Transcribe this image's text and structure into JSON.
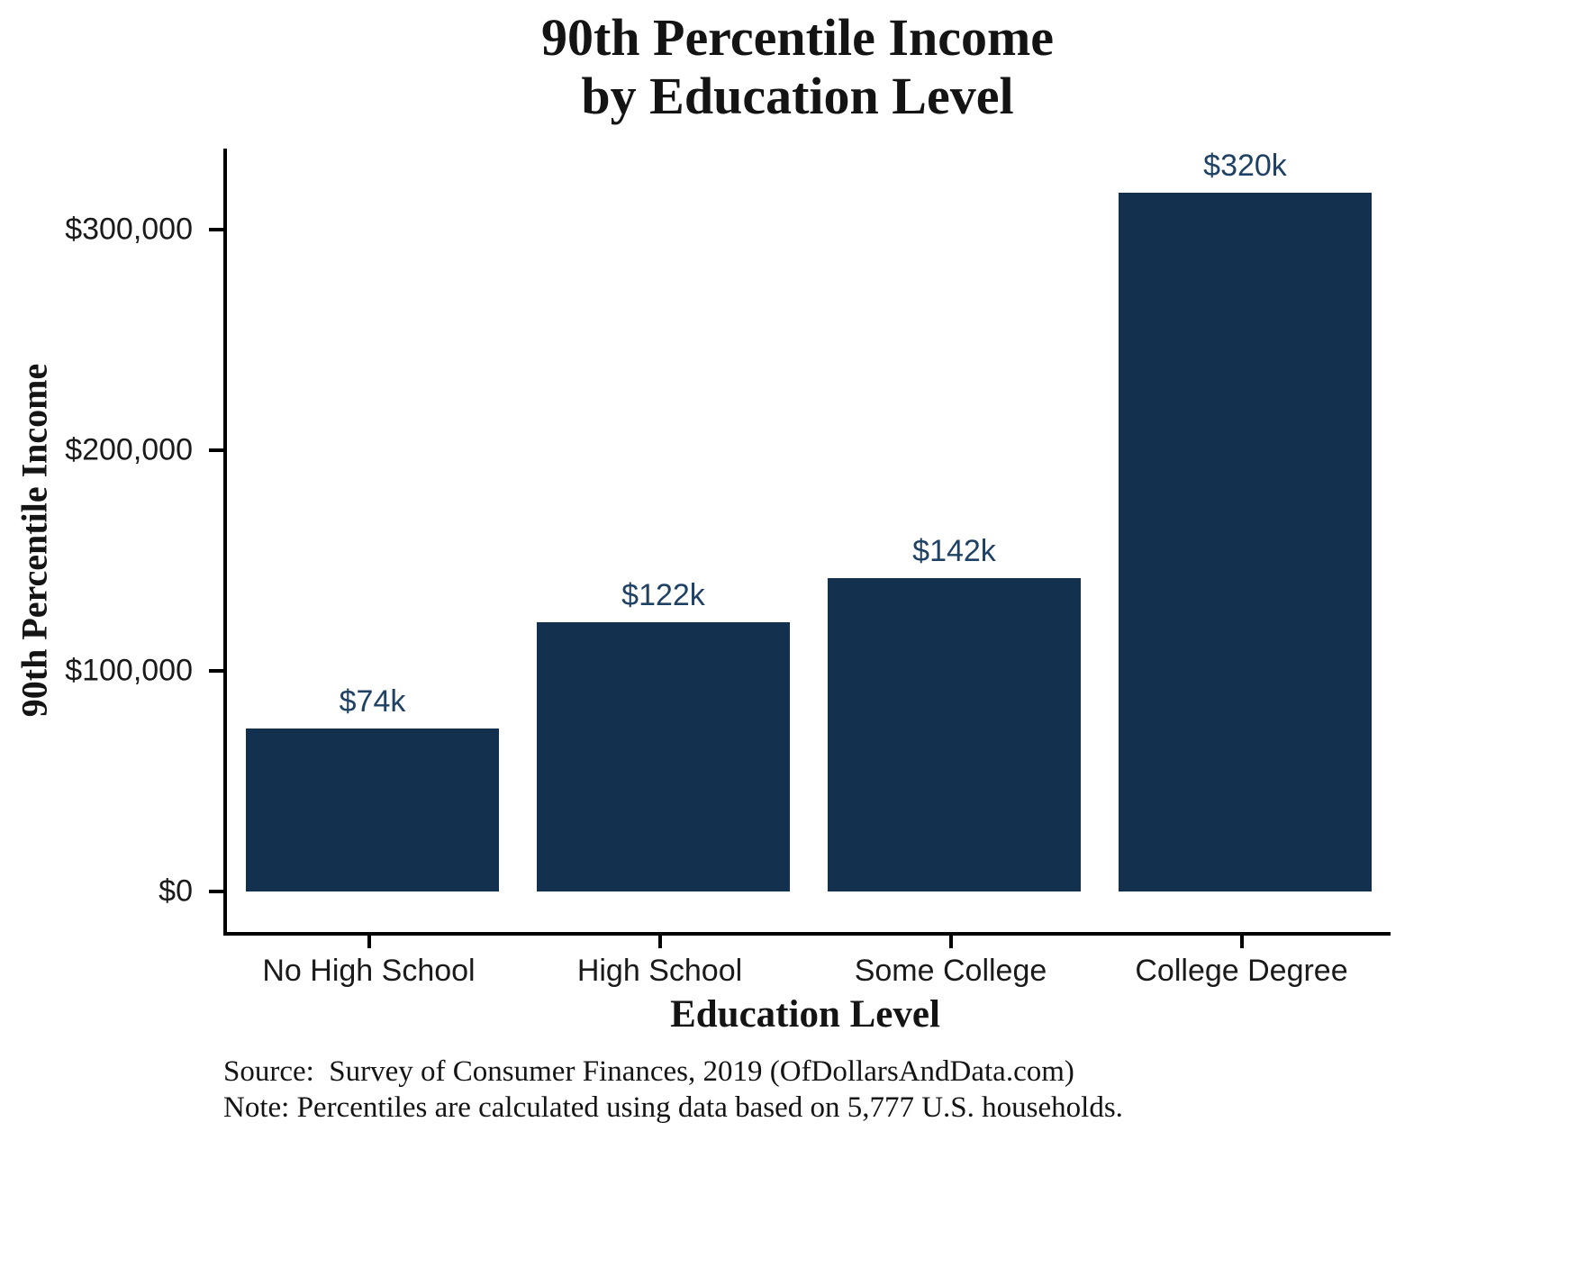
{
  "title": {
    "line1": "90th Percentile Income",
    "line2": "by Education Level"
  },
  "axes": {
    "y_title": "90th Percentile Income",
    "x_title": "Education Level"
  },
  "chart_data": {
    "type": "bar",
    "title": "90th Percentile Income by Education Level",
    "xlabel": "Education Level",
    "ylabel": "90th Percentile Income",
    "categories": [
      "No High School",
      "High School",
      "Some College",
      "College Degree"
    ],
    "values": [
      74000,
      122000,
      142000,
      320000
    ],
    "bar_labels": [
      "$74k",
      "$122k",
      "$142k",
      "$320k"
    ],
    "ylim": [
      0,
      340000
    ],
    "yticks": [
      {
        "value": 0,
        "label": "$0"
      },
      {
        "value": 100000,
        "label": "$100,000"
      },
      {
        "value": 200000,
        "label": "$200,000"
      },
      {
        "value": 300000,
        "label": "$300,000"
      }
    ],
    "grid": false,
    "legend": false,
    "colors": {
      "bar": "#13304f",
      "bar_label": "#1f4164",
      "axis": "#000000",
      "background": "#ffffff"
    }
  },
  "footer": {
    "source": "Source:  Survey of Consumer Finances, 2019 (OfDollarsAndData.com)",
    "note": "Note: Percentiles are calculated using data based on 5,777 U.S. households."
  }
}
